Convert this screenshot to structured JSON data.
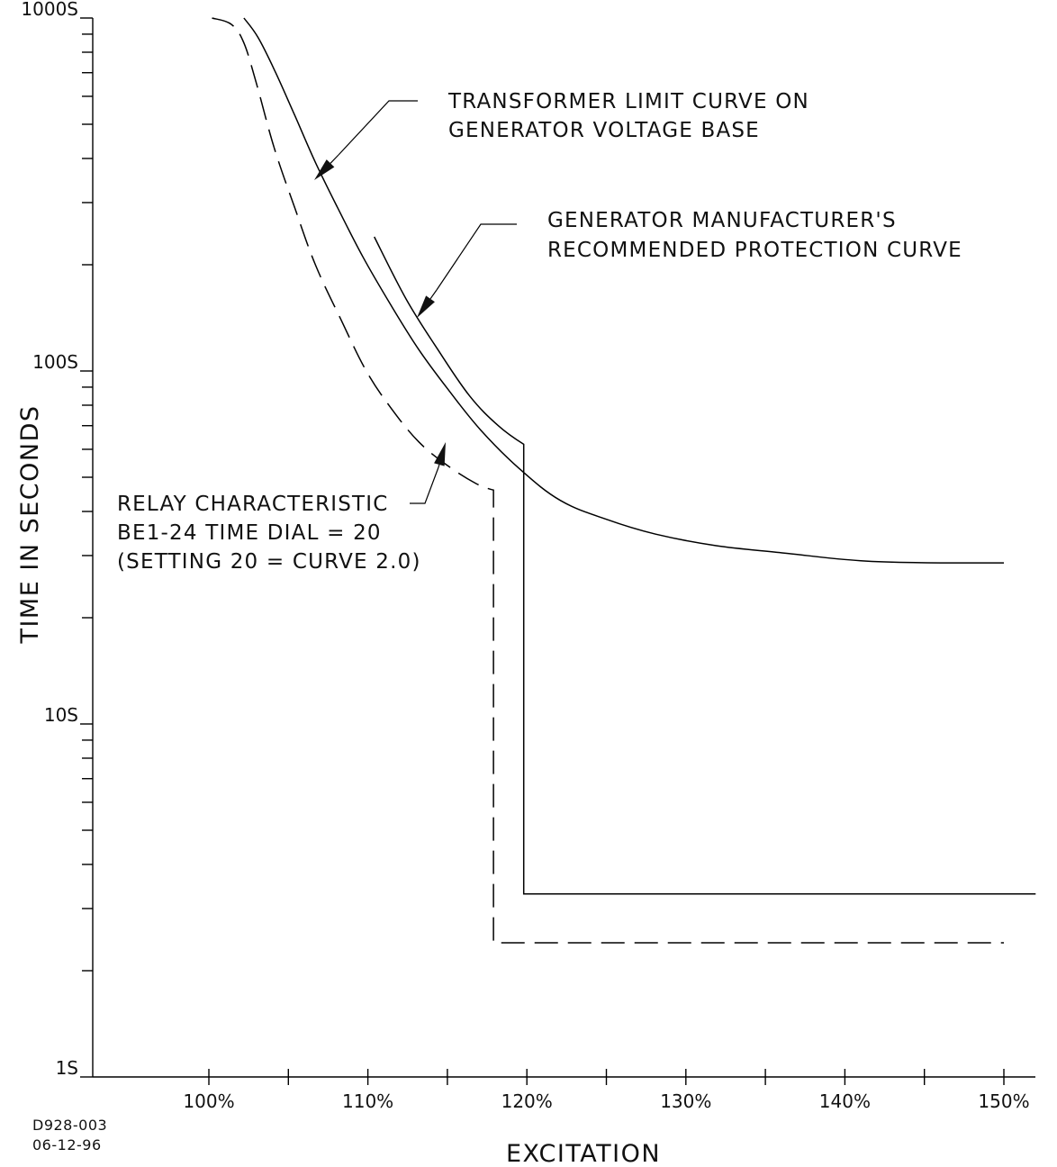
{
  "chart_data": {
    "type": "line",
    "xlabel": "EXCITATION",
    "ylabel": "TIME IN SECONDS",
    "xlim": [
      92.7,
      150
    ],
    "ylim": [
      1,
      1000
    ],
    "y_scale": "log",
    "x_ticks": [
      {
        "value": 100,
        "label": "100%"
      },
      {
        "value": 110,
        "label": "110%"
      },
      {
        "value": 120,
        "label": "120%"
      },
      {
        "value": 130,
        "label": "130%"
      },
      {
        "value": 140,
        "label": "140%"
      },
      {
        "value": 150,
        "label": "150%"
      }
    ],
    "x_minor_ticks": [
      105,
      115,
      125,
      135,
      145
    ],
    "y_ticks": [
      {
        "value": 1,
        "label": "1S"
      },
      {
        "value": 10,
        "label": "10S"
      },
      {
        "value": 100,
        "label": "100S"
      },
      {
        "value": 1000,
        "label": "1000S"
      }
    ],
    "series": [
      {
        "style": "solid",
        "x": [
          102.2,
          103.1,
          104.2,
          105.4,
          106.7,
          108.1,
          109.7,
          111.4,
          113.2,
          115.1,
          117.1,
          119.5,
          122.1,
          125.0,
          128.1,
          131.9,
          136.2,
          141.0,
          146.0,
          150.0
        ],
        "y": [
          1000,
          880,
          700,
          530,
          390,
          290,
          210,
          155,
          115,
          88,
          68,
          53,
          43,
          38,
          34.5,
          32,
          30.5,
          29,
          28.6,
          28.6
        ]
      },
      {
        "style": "solid",
        "x": [
          110.4,
          112.4,
          114.4,
          116.4,
          118.2,
          119.8,
          119.8,
          152.0
        ],
        "y": [
          240,
          160,
          115,
          85,
          70,
          62,
          3.3,
          3.3
        ]
      },
      {
        "style": "dashed",
        "x": [
          100.2,
          101.4,
          102.2,
          103.0,
          104.1,
          105.4,
          106.7,
          108.3,
          109.9,
          111.5,
          113.2,
          115.0,
          116.8,
          117.9,
          117.9,
          150.0
        ],
        "y": [
          1000,
          960,
          850,
          650,
          430,
          290,
          200,
          140,
          100,
          78,
          63,
          54,
          48,
          46,
          2.4,
          2.4
        ]
      }
    ],
    "annotations": [
      {
        "lines": [
          "TRANSFORMER LIMIT CURVE ON",
          "GENERATOR VOLTAGE BASE"
        ]
      },
      {
        "lines": [
          "GENERATOR MANUFACTURER'S",
          "RECOMMENDED PROTECTION CURVE"
        ]
      },
      {
        "lines": [
          "RELAY CHARACTERISTIC",
          "BE1-24 TIME DIAL = 20",
          "(SETTING 20 = CURVE 2.0)"
        ]
      }
    ]
  },
  "drawing_id": [
    "D928-003",
    "06-12-96"
  ]
}
